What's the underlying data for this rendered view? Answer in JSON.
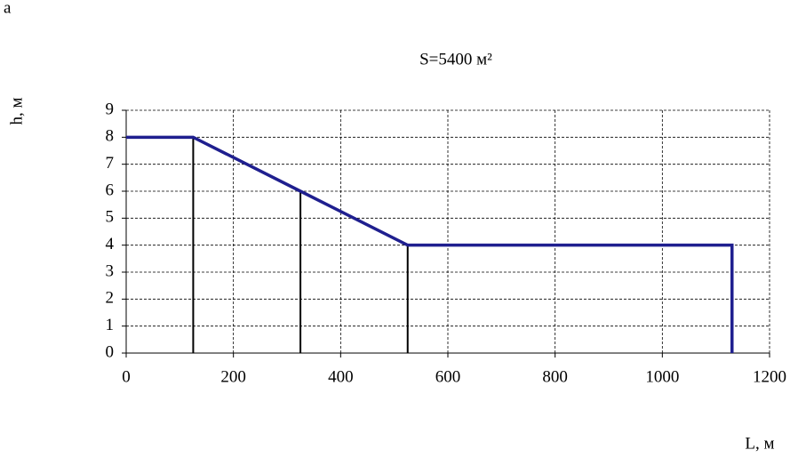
{
  "panel_label": "a",
  "chart_data": {
    "type": "line",
    "title": "S=5400 м²",
    "x_label": "L, м",
    "y_label": "h, м",
    "series": [
      {
        "color": "#1f1f8f",
        "x": [
          0,
          125,
          325,
          525,
          1130,
          1130
        ],
        "values": [
          8,
          8,
          6,
          4,
          4,
          0
        ]
      }
    ],
    "drops": {
      "color": "#000000",
      "x": [
        125,
        325,
        525
      ],
      "values": [
        8,
        6,
        4
      ]
    },
    "xlim": [
      0,
      1200
    ],
    "xticks": [
      0,
      200,
      400,
      600,
      800,
      1000,
      1200
    ],
    "ylim": [
      0,
      9
    ],
    "yticks": [
      0,
      1,
      2,
      3,
      4,
      5,
      6,
      7,
      8,
      9
    ],
    "grid": true
  }
}
